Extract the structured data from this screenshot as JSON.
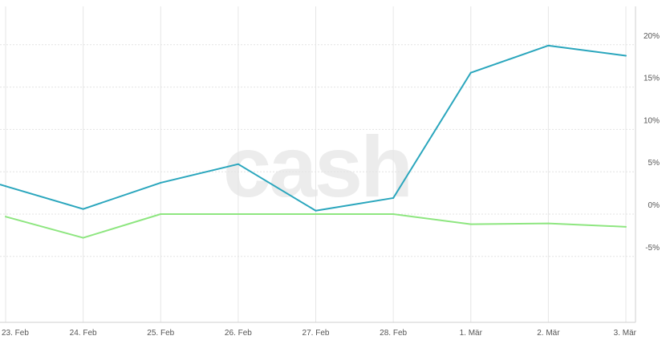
{
  "watermark": "cash",
  "chart_data": {
    "type": "line",
    "categories": [
      "23. Feb",
      "24. Feb",
      "25. Feb",
      "26. Feb",
      "27. Feb",
      "28. Feb",
      "1. Mär",
      "2. Mär",
      "3. Mär"
    ],
    "series": [
      {
        "color": "#2aa6bd",
        "values": [
          3.3,
          0.6,
          3.7,
          5.9,
          0.4,
          1.9,
          16.7,
          19.9,
          18.7
        ]
      },
      {
        "color": "#8ee680",
        "values": [
          -0.3,
          -2.8,
          0.0,
          0.0,
          0.0,
          0.0,
          -1.2,
          -1.1,
          -1.5
        ]
      }
    ],
    "y_ticks": [
      20,
      15,
      10,
      5,
      0,
      -5
    ],
    "y_tick_labels": [
      "20%",
      "15%",
      "10%",
      "5%",
      "0%",
      "-5%"
    ],
    "ylim": [
      -12.5,
      24.5
    ],
    "grid": true,
    "y_axis_position": "right"
  }
}
